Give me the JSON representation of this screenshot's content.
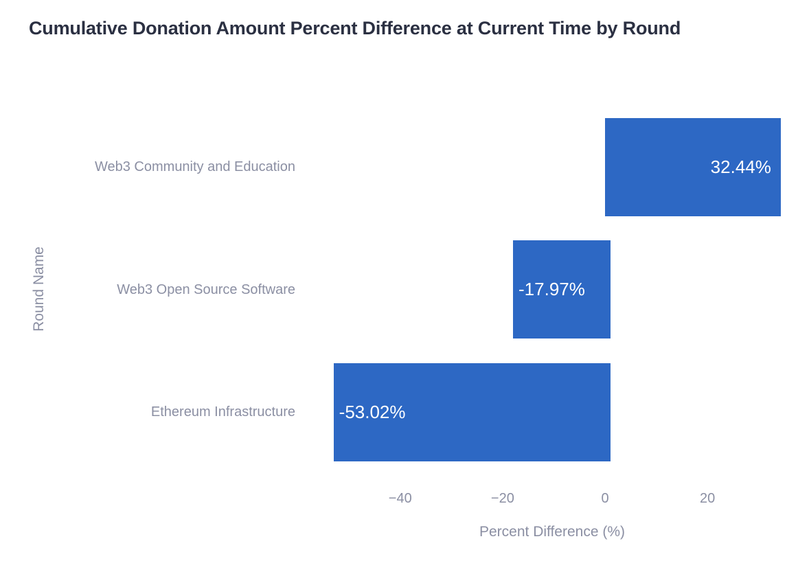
{
  "title": "Cumulative Donation Amount Percent Difference at Current Time by Round",
  "chart_data": {
    "type": "bar",
    "orientation": "horizontal",
    "title": "Cumulative Donation Amount Percent Difference at Current Time by Round",
    "categories": [
      "Web3 Community and Education",
      "Web3 Open Source Software",
      "Ethereum Infrastructure"
    ],
    "values": [
      32.44,
      -17.97,
      -53.02
    ],
    "bar_labels": [
      "32.44%",
      "-17.97%",
      "-53.02%"
    ],
    "xlabel": "Percent Difference (%)",
    "ylabel": "Round Name",
    "xlim": [
      -59.0,
      38.4
    ],
    "x_ticks": [
      {
        "value": -40,
        "label": "−40"
      },
      {
        "value": -20,
        "label": "−20"
      },
      {
        "value": 0,
        "label": "0"
      },
      {
        "value": 20,
        "label": "20"
      }
    ],
    "grid": false,
    "legend": "none",
    "colors": {
      "bar": "#2d68c4",
      "title_text": "#2b3042",
      "axis_text": "#8b8fa3",
      "bar_label_text": "#ffffff",
      "background": "#ffffff"
    }
  }
}
